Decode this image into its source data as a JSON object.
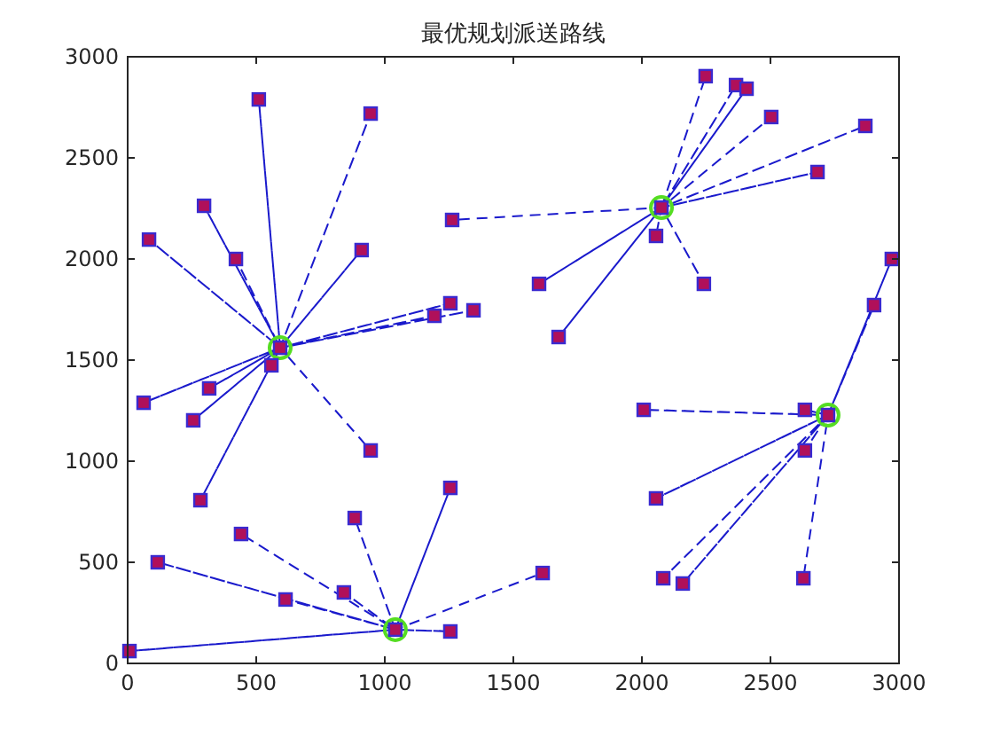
{
  "chart_data": {
    "type": "scatter",
    "title": "最优规划派送路线",
    "xlim": [
      0,
      3000
    ],
    "ylim": [
      0,
      3000
    ],
    "xticks": [
      0,
      500,
      1000,
      1500,
      2000,
      2500,
      3000
    ],
    "yticks": [
      0,
      500,
      1000,
      1500,
      2000,
      2500,
      3000
    ],
    "grid": false,
    "series": [
      {
        "type": "line",
        "line_style": "dashed",
        "marker": "none",
        "color": "#1a1acc",
        "x": [
          593,
          510,
          593,
          945,
          593,
          297,
          593,
          83,
          593,
          421,
          593,
          910,
          593,
          559,
          593,
          1193,
          593,
          1255,
          593,
          1345,
          593,
          62,
          593,
          317,
          593,
          255,
          593,
          283,
          593,
          945
        ],
        "values": [
          1561,
          2789,
          1561,
          2719,
          1561,
          2263,
          1561,
          2096,
          1561,
          2000,
          1561,
          2044,
          1561,
          1474,
          1561,
          1719,
          1561,
          1781,
          1561,
          1746,
          1561,
          1289,
          1561,
          1360,
          1561,
          1202,
          1561,
          807,
          1561,
          1053
        ]
      },
      {
        "type": "line",
        "line_style": "dashed",
        "marker": "none",
        "color": "#1a1acc",
        "x": [
          2076,
          2248,
          2076,
          2366,
          2076,
          2407,
          2076,
          2503,
          2076,
          2869,
          2076,
          2683,
          2076,
          2055,
          2076,
          2241,
          2076,
          1676,
          2076,
          1600,
          2076,
          1262
        ],
        "values": [
          2254,
          2904,
          2254,
          2860,
          2254,
          2842,
          2254,
          2702,
          2254,
          2658,
          2254,
          2430,
          2254,
          2114,
          2254,
          1877,
          2254,
          1614,
          2254,
          1877,
          2254,
          2193
        ]
      },
      {
        "type": "line",
        "line_style": "dashed",
        "marker": "none",
        "color": "#1a1acc",
        "x": [
          2724,
          2972,
          2724,
          2903,
          2724,
          2007,
          2724,
          2634,
          2724,
          2634,
          2724,
          2055,
          2724,
          2083,
          2724,
          2159,
          2724,
          2628
        ],
        "values": [
          1228,
          2000,
          1228,
          1772,
          1228,
          1254,
          1228,
          1254,
          1228,
          1053,
          1228,
          816,
          1228,
          421,
          1228,
          395,
          1228,
          421
        ]
      },
      {
        "type": "line",
        "line_style": "dashed",
        "marker": "none",
        "color": "#1a1acc",
        "x": [
          1041,
          1255,
          1041,
          883,
          1041,
          441,
          1041,
          117,
          1041,
          614,
          1041,
          841,
          1041,
          1255,
          1041,
          7,
          1041,
          1614
        ],
        "values": [
          167,
          868,
          167,
          719,
          167,
          640,
          167,
          500,
          167,
          316,
          167,
          351,
          167,
          158,
          167,
          61,
          167,
          447
        ]
      },
      {
        "marker": "circle",
        "color": "#55dd22",
        "x": [
          593,
          2076,
          2724,
          1041
        ],
        "values": [
          1561,
          2254,
          1228,
          167
        ]
      },
      {
        "marker": "square",
        "color": "#b0105a",
        "x": [
          593,
          2076,
          2724,
          1041,
          510,
          945,
          297,
          83,
          421,
          910,
          559,
          1193,
          1255,
          1345,
          62,
          317,
          255,
          283,
          945,
          2248,
          2366,
          2407,
          2503,
          2869,
          2683,
          2055,
          2241,
          1676,
          1600,
          1262,
          2972,
          2903,
          2007,
          2634,
          2634,
          2055,
          2083,
          2159,
          2628,
          1255,
          883,
          441,
          117,
          614,
          841,
          1255,
          7,
          1614
        ],
        "values": [
          1561,
          2254,
          1228,
          167,
          2789,
          2719,
          2263,
          2096,
          2000,
          2044,
          1474,
          1719,
          1781,
          1746,
          1289,
          1360,
          1202,
          807,
          1053,
          2904,
          2860,
          2842,
          2702,
          2658,
          2430,
          2114,
          1877,
          1614,
          1877,
          2193,
          2000,
          1772,
          1254,
          1254,
          1053,
          816,
          421,
          395,
          421,
          868,
          719,
          640,
          500,
          316,
          351,
          158,
          61,
          447
        ]
      }
    ]
  }
}
